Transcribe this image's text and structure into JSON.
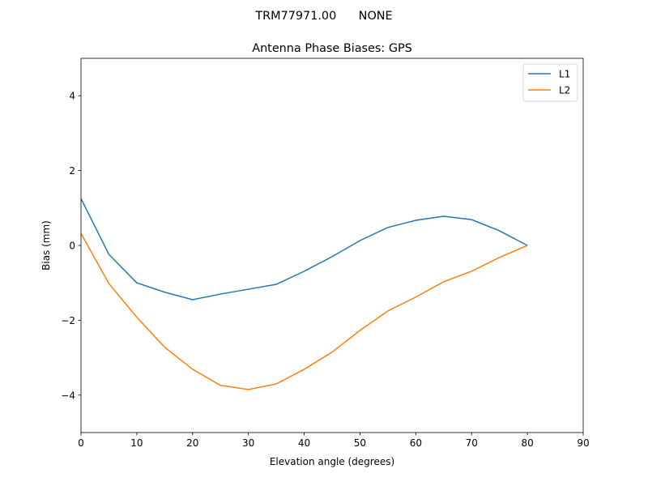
{
  "chart_data": {
    "type": "line",
    "suptitle": "TRM77971.00      NONE",
    "title": "Antenna Phase Biases: GPS",
    "xlabel": "Elevation angle (degrees)",
    "ylabel": "Bias (mm)",
    "xlim": [
      0,
      90
    ],
    "ylim": [
      -5,
      5
    ],
    "xticks": [
      0,
      10,
      20,
      30,
      40,
      50,
      60,
      70,
      80,
      90
    ],
    "yticks": [
      -4,
      -2,
      0,
      2,
      4
    ],
    "ytick_labels": [
      "−4",
      "−2",
      "0",
      "2",
      "4"
    ],
    "grid": false,
    "legend_position": "top-right",
    "x": [
      0,
      5,
      10,
      15,
      20,
      25,
      30,
      35,
      40,
      45,
      50,
      55,
      60,
      65,
      70,
      75,
      80
    ],
    "series": [
      {
        "name": "L1",
        "color": "#1f77b4",
        "values": [
          1.25,
          -0.24,
          -1.0,
          -1.25,
          -1.45,
          -1.3,
          -1.17,
          -1.04,
          -0.69,
          -0.3,
          0.13,
          0.48,
          0.67,
          0.78,
          0.69,
          0.39,
          0.0
        ]
      },
      {
        "name": "L2",
        "color": "#ff7f0e",
        "values": [
          0.32,
          -1.02,
          -1.92,
          -2.72,
          -3.31,
          -3.74,
          -3.85,
          -3.7,
          -3.31,
          -2.85,
          -2.27,
          -1.75,
          -1.38,
          -0.97,
          -0.69,
          -0.32,
          0.0
        ]
      }
    ]
  }
}
